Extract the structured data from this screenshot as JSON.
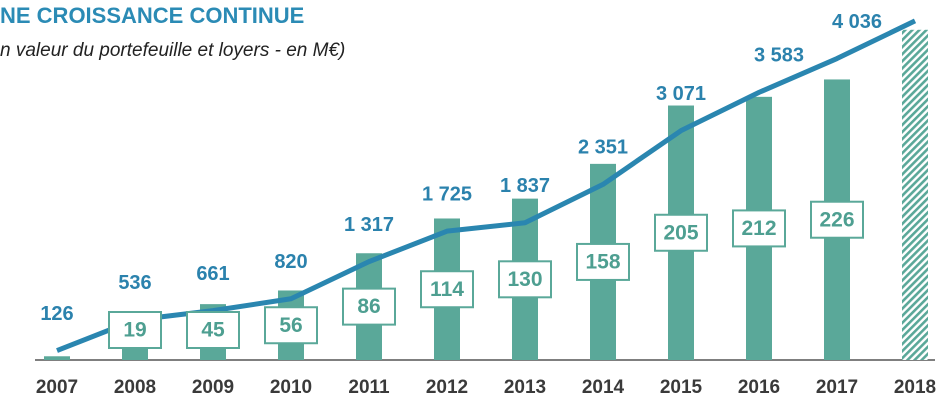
{
  "chart_data": {
    "type": "bar_line",
    "title": "NE CROISSANCE CONTINUE",
    "subtitle": "n valeur du portefeuille et loyers - en M€)",
    "categories": [
      "2007",
      "2008",
      "2009",
      "2010",
      "2011",
      "2012",
      "2013",
      "2014",
      "2015",
      "2016",
      "2017",
      "2018"
    ],
    "series": [
      {
        "name": "loyers",
        "type": "bar",
        "color": "#5aa899",
        "values": [
          3,
          19,
          45,
          56,
          86,
          114,
          130,
          158,
          205,
          212,
          226,
          266
        ],
        "value_labels": [
          null,
          "19",
          "45",
          "56",
          "86",
          "114",
          "130",
          "158",
          "205",
          "212",
          "226",
          null
        ],
        "hatch": [
          false,
          false,
          false,
          false,
          false,
          false,
          false,
          false,
          false,
          false,
          false,
          true
        ]
      },
      {
        "name": "valeur du portefeuille",
        "type": "line",
        "color": "#2a86b0",
        "axis": "y2",
        "values": [
          126,
          536,
          661,
          820,
          1317,
          1725,
          1837,
          2351,
          3071,
          3583,
          4036,
          4540
        ],
        "value_labels": [
          "126",
          "536",
          "661",
          "820",
          "1 317",
          "1 725",
          "1 837",
          "2 351",
          "3 071",
          "3 583",
          "4 036",
          null
        ]
      }
    ],
    "ylim": [
      0,
      290
    ],
    "y2lim": [
      0,
      4820
    ]
  }
}
